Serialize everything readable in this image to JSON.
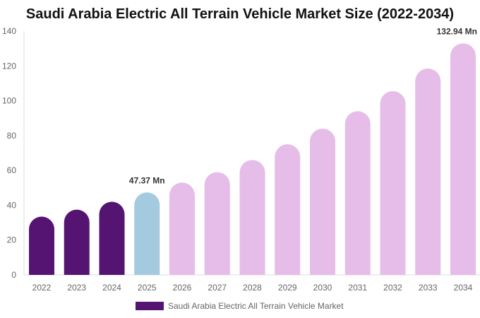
{
  "chart_data": {
    "type": "bar",
    "title": "Saudi Arabia Electric All Terrain Vehicle Market Size (2022-2034)",
    "xlabel": "",
    "ylabel": "",
    "ylim": [
      0,
      140
    ],
    "yticks": [
      "0",
      "20",
      "40",
      "60",
      "80",
      "100",
      "120",
      "140"
    ],
    "grid": false,
    "legend_position": "bottom",
    "categories": [
      "2022",
      "2023",
      "2024",
      "2025",
      "2026",
      "2027",
      "2028",
      "2029",
      "2030",
      "2031",
      "2032",
      "2033",
      "2034"
    ],
    "series": [
      {
        "name": "Saudi Arabia Electric All Terrain Vehicle Market",
        "values": [
          33.5,
          37.5,
          42,
          47.37,
          53,
          59,
          66,
          75,
          84,
          94,
          105.5,
          118.5,
          132.94
        ]
      }
    ],
    "bar_colors": [
      "#561472",
      "#561472",
      "#561472",
      "#a3cadf",
      "#e6bce8",
      "#e6bce8",
      "#e6bce8",
      "#e6bce8",
      "#e6bce8",
      "#e6bce8",
      "#e6bce8",
      "#e6bce8",
      "#e6bce8"
    ],
    "legend_color": "#561472",
    "annotations": [
      {
        "index": 3,
        "text": "47.37 Mn"
      },
      {
        "index": 12,
        "text": "132.94 Mn"
      }
    ]
  }
}
